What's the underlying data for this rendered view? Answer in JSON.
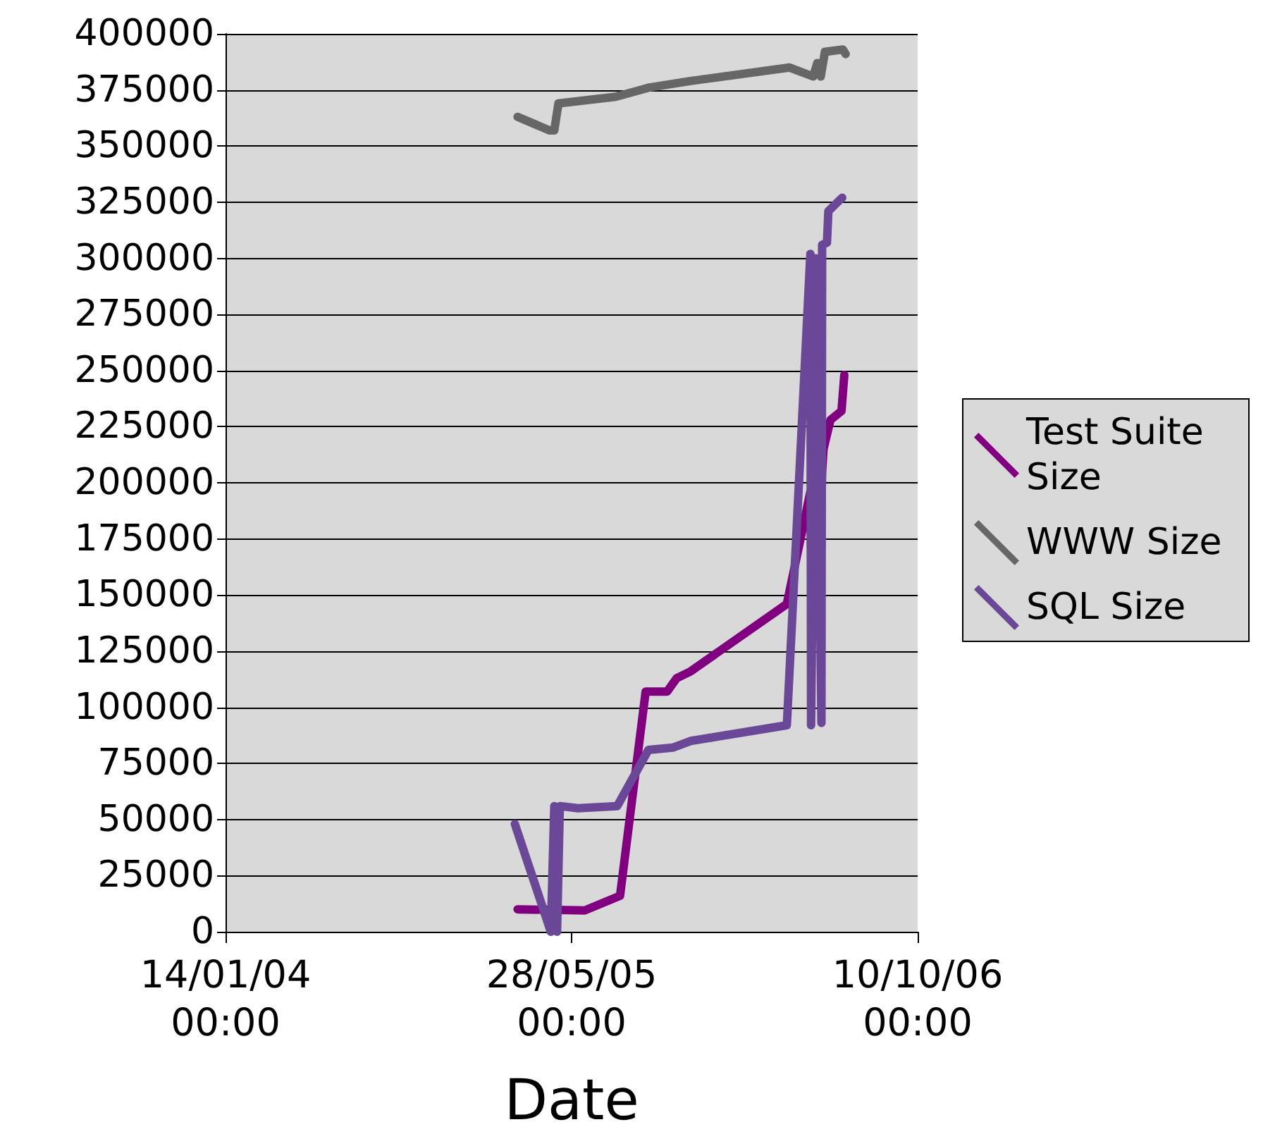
{
  "chart_data": {
    "type": "line",
    "xlabel": "Date",
    "xlim": [
      "2004-01-14T00:00",
      "2006-10-10T00:00"
    ],
    "xticks": [
      {
        "value": "2004-01-14T00:00",
        "label": "14/01/04\n00:00"
      },
      {
        "value": "2005-05-28T00:00",
        "label": "28/05/05\n00:00"
      },
      {
        "value": "2006-10-10T00:00",
        "label": "10/10/06\n00:00"
      }
    ],
    "ylim": [
      0,
      400000
    ],
    "yticks": [
      0,
      25000,
      50000,
      75000,
      100000,
      125000,
      150000,
      175000,
      200000,
      225000,
      250000,
      275000,
      300000,
      325000,
      350000,
      375000,
      400000
    ],
    "grid": "y",
    "legend": "right",
    "marker": "none",
    "line_style": "solid",
    "series": [
      {
        "name": "Test Suite Size",
        "color": "#800080",
        "x": [
          "2005-03-11",
          "2005-06-16",
          "2005-08-06",
          "2005-09-12",
          "2005-10-13",
          "2005-10-27",
          "2005-11-16",
          "2006-04-04",
          "2006-05-08",
          "2006-05-10",
          "2006-05-14",
          "2006-05-21",
          "2006-05-25",
          "2006-05-27",
          "2006-06-06",
          "2006-06-22",
          "2006-06-26"
        ],
        "values": [
          10000,
          9500,
          16000,
          107000,
          107000,
          113000,
          116000,
          146000,
          196000,
          148000,
          200000,
          148000,
          205000,
          215000,
          228000,
          232000,
          248000
        ]
      },
      {
        "name": "WWW Size",
        "color": "#666666",
        "x": [
          "2005-03-11",
          "2005-04-26",
          "2005-05-03",
          "2005-05-09",
          "2005-07-31",
          "2005-09-16",
          "2005-11-16",
          "2006-04-08",
          "2006-05-12",
          "2006-05-18",
          "2006-05-23",
          "2006-05-29",
          "2006-06-24",
          "2006-06-28"
        ],
        "values": [
          363000,
          357000,
          357000,
          369000,
          372000,
          376000,
          379000,
          385000,
          381000,
          387000,
          381000,
          392000,
          393000,
          391000
        ]
      },
      {
        "name": "SQL Size",
        "color": "#6b4797",
        "x": [
          "2005-03-07",
          "2005-04-28",
          "2005-05-03",
          "2005-05-07",
          "2005-05-11",
          "2005-06-06",
          "2005-08-02",
          "2005-09-16",
          "2005-10-21",
          "2005-11-16",
          "2006-04-04",
          "2006-05-08",
          "2006-05-09",
          "2006-05-16",
          "2006-05-24",
          "2006-05-25",
          "2006-06-01",
          "2006-06-03",
          "2006-06-13",
          "2006-06-23"
        ],
        "values": [
          48000,
          0,
          56000,
          0,
          56000,
          55000,
          56000,
          81000,
          82000,
          85000,
          92000,
          302000,
          92000,
          300000,
          93000,
          306000,
          307000,
          321000,
          324000,
          327000
        ]
      }
    ]
  }
}
